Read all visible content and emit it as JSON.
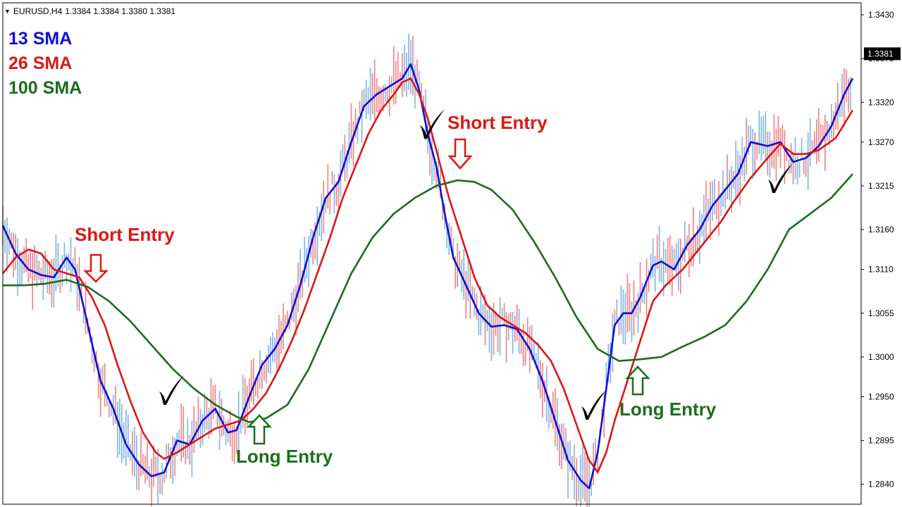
{
  "header": {
    "symbol": "EURUSD,H4",
    "ohlc": "1.3384 1.3384 1.3380 1.3381"
  },
  "legend": [
    {
      "label": "13 SMA",
      "color": "#1010d0"
    },
    {
      "label": "26 SMA",
      "color": "#e01515"
    },
    {
      "label": "100 SMA",
      "color": "#1a6e1a"
    }
  ],
  "chart_data": {
    "type": "line",
    "y_ticks": [
      "1.3430",
      "1.3375",
      "1.3320",
      "1.3270",
      "1.3215",
      "1.3160",
      "1.3110",
      "1.3055",
      "1.3000",
      "1.2950",
      "1.2895",
      "1.2840"
    ],
    "ylim": [
      1.2815,
      1.3445
    ],
    "current_price": "1.3381",
    "x_range": [
      0,
      200
    ],
    "series": [
      {
        "name": "13 SMA",
        "color": "#1010d0",
        "points": [
          [
            0,
            1.3165
          ],
          [
            3,
            1.313
          ],
          [
            6,
            1.311
          ],
          [
            9,
            1.3103
          ],
          [
            12,
            1.31
          ],
          [
            15,
            1.3125
          ],
          [
            17,
            1.311
          ],
          [
            20,
            1.304
          ],
          [
            23,
            1.297
          ],
          [
            26,
            1.2935
          ],
          [
            29,
            1.289
          ],
          [
            32,
            1.2865
          ],
          [
            35,
            1.285
          ],
          [
            38,
            1.2855
          ],
          [
            41,
            1.2895
          ],
          [
            44,
            1.289
          ],
          [
            47,
            1.292
          ],
          [
            50,
            1.2935
          ],
          [
            53,
            1.2905
          ],
          [
            55,
            1.2908
          ],
          [
            58,
            1.295
          ],
          [
            61,
            1.299
          ],
          [
            64,
            1.301
          ],
          [
            67,
            1.304
          ],
          [
            70,
            1.309
          ],
          [
            73,
            1.315
          ],
          [
            76,
            1.32
          ],
          [
            79,
            1.322
          ],
          [
            82,
            1.327
          ],
          [
            85,
            1.3315
          ],
          [
            88,
            1.333
          ],
          [
            91,
            1.334
          ],
          [
            94,
            1.335
          ],
          [
            96,
            1.3368
          ],
          [
            98,
            1.3335
          ],
          [
            100,
            1.328
          ],
          [
            102,
            1.324
          ],
          [
            104,
            1.318
          ],
          [
            106,
            1.3125
          ],
          [
            109,
            1.309
          ],
          [
            112,
            1.3055
          ],
          [
            115,
            1.3038
          ],
          [
            118,
            1.304
          ],
          [
            121,
            1.3035
          ],
          [
            124,
            1.301
          ],
          [
            127,
            1.297
          ],
          [
            130,
            1.292
          ],
          [
            133,
            1.287
          ],
          [
            136,
            1.2845
          ],
          [
            138,
            1.2835
          ],
          [
            140,
            1.288
          ],
          [
            142,
            1.296
          ],
          [
            144,
            1.304
          ],
          [
            146,
            1.3055
          ],
          [
            148,
            1.3055
          ],
          [
            150,
            1.3075
          ],
          [
            153,
            1.3115
          ],
          [
            155,
            1.312
          ],
          [
            158,
            1.311
          ],
          [
            161,
            1.314
          ],
          [
            164,
            1.316
          ],
          [
            167,
            1.319
          ],
          [
            170,
            1.321
          ],
          [
            173,
            1.323
          ],
          [
            176,
            1.327
          ],
          [
            180,
            1.3265
          ],
          [
            183,
            1.327
          ],
          [
            186,
            1.3245
          ],
          [
            189,
            1.325
          ],
          [
            192,
            1.3265
          ],
          [
            195,
            1.329
          ],
          [
            198,
            1.333
          ],
          [
            200,
            1.335
          ]
        ]
      },
      {
        "name": "26 SMA",
        "color": "#e01515",
        "points": [
          [
            0,
            1.3105
          ],
          [
            3,
            1.3125
          ],
          [
            6,
            1.3135
          ],
          [
            9,
            1.313
          ],
          [
            12,
            1.311
          ],
          [
            15,
            1.3105
          ],
          [
            18,
            1.31
          ],
          [
            21,
            1.3075
          ],
          [
            24,
            1.304
          ],
          [
            27,
            1.299
          ],
          [
            30,
            1.2945
          ],
          [
            33,
            1.2905
          ],
          [
            36,
            1.288
          ],
          [
            38,
            1.2872
          ],
          [
            41,
            1.288
          ],
          [
            44,
            1.289
          ],
          [
            47,
            1.29
          ],
          [
            50,
            1.291
          ],
          [
            53,
            1.2915
          ],
          [
            56,
            1.292
          ],
          [
            59,
            1.2935
          ],
          [
            62,
            1.2955
          ],
          [
            65,
            1.2985
          ],
          [
            68,
            1.302
          ],
          [
            71,
            1.306
          ],
          [
            74,
            1.3105
          ],
          [
            77,
            1.315
          ],
          [
            80,
            1.32
          ],
          [
            83,
            1.324
          ],
          [
            86,
            1.328
          ],
          [
            89,
            1.331
          ],
          [
            92,
            1.333
          ],
          [
            94,
            1.3345
          ],
          [
            96,
            1.335
          ],
          [
            98,
            1.333
          ],
          [
            100,
            1.33
          ],
          [
            102,
            1.326
          ],
          [
            105,
            1.32
          ],
          [
            108,
            1.315
          ],
          [
            111,
            1.31
          ],
          [
            114,
            1.3065
          ],
          [
            117,
            1.305
          ],
          [
            120,
            1.304
          ],
          [
            123,
            1.303
          ],
          [
            126,
            1.3015
          ],
          [
            129,
            1.2995
          ],
          [
            132,
            1.296
          ],
          [
            135,
            1.2915
          ],
          [
            138,
            1.287
          ],
          [
            140,
            1.2855
          ],
          [
            142,
            1.288
          ],
          [
            144,
            1.292
          ],
          [
            147,
            1.297
          ],
          [
            150,
            1.302
          ],
          [
            153,
            1.307
          ],
          [
            156,
            1.309
          ],
          [
            160,
            1.311
          ],
          [
            163,
            1.313
          ],
          [
            166,
            1.315
          ],
          [
            169,
            1.317
          ],
          [
            172,
            1.3195
          ],
          [
            176,
            1.3225
          ],
          [
            180,
            1.325
          ],
          [
            183,
            1.3268
          ],
          [
            186,
            1.3255
          ],
          [
            189,
            1.3255
          ],
          [
            192,
            1.326
          ],
          [
            196,
            1.3275
          ],
          [
            200,
            1.331
          ]
        ]
      },
      {
        "name": "100 SMA",
        "color": "#1a6e1a",
        "points": [
          [
            0,
            1.309
          ],
          [
            5,
            1.309
          ],
          [
            10,
            1.3092
          ],
          [
            15,
            1.3097
          ],
          [
            20,
            1.3088
          ],
          [
            25,
            1.307
          ],
          [
            30,
            1.3045
          ],
          [
            35,
            1.3015
          ],
          [
            40,
            1.2985
          ],
          [
            45,
            1.296
          ],
          [
            50,
            1.294
          ],
          [
            55,
            1.2925
          ],
          [
            58,
            1.2918
          ],
          [
            62,
            1.2923
          ],
          [
            67,
            1.294
          ],
          [
            72,
            1.2985
          ],
          [
            77,
            1.3045
          ],
          [
            82,
            1.3105
          ],
          [
            87,
            1.315
          ],
          [
            92,
            1.318
          ],
          [
            97,
            1.32
          ],
          [
            102,
            1.3215
          ],
          [
            107,
            1.3222
          ],
          [
            111,
            1.322
          ],
          [
            115,
            1.321
          ],
          [
            120,
            1.3185
          ],
          [
            125,
            1.3145
          ],
          [
            130,
            1.31
          ],
          [
            135,
            1.305
          ],
          [
            140,
            1.301
          ],
          [
            145,
            1.2995
          ],
          [
            150,
            1.2997
          ],
          [
            155,
            1.3
          ],
          [
            160,
            1.3013
          ],
          [
            165,
            1.3025
          ],
          [
            170,
            1.304
          ],
          [
            175,
            1.307
          ],
          [
            180,
            1.311
          ],
          [
            185,
            1.316
          ],
          [
            190,
            1.318
          ],
          [
            195,
            1.32
          ],
          [
            200,
            1.323
          ]
        ]
      }
    ]
  },
  "annotations": {
    "short_entry_1": "Short Entry",
    "short_entry_2": "Short Entry",
    "long_entry_1": "Long Entry",
    "long_entry_2": "Long Entry"
  }
}
